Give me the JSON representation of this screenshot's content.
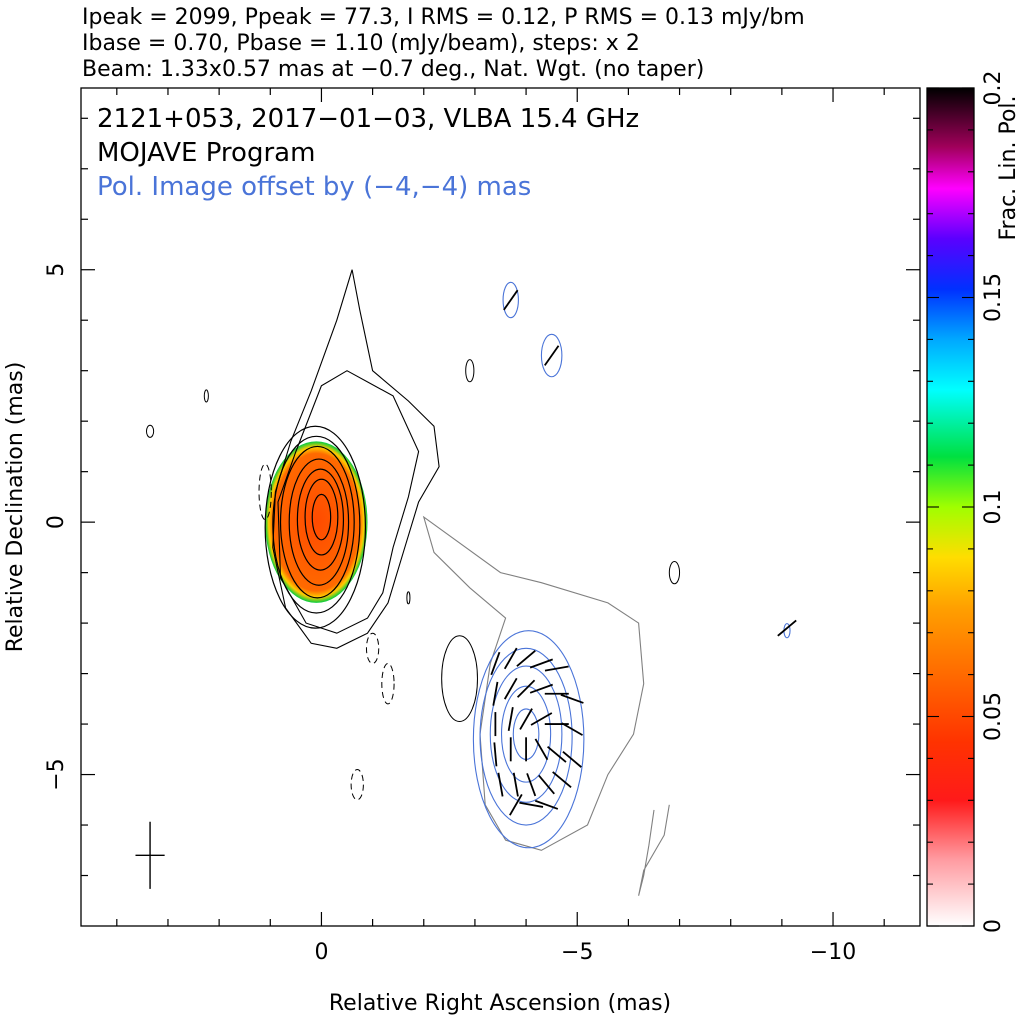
{
  "header": {
    "line1": "Ipeak = 2099, Ppeak = 77.3, I RMS = 0.12, P RMS = 0.13 mJy/bm",
    "line2": "Ibase = 0.70, Pbase = 1.10 (mJy/beam), steps: x 2",
    "line3": "Beam: 1.33x0.57 mas at −0.7 deg., Nat. Wgt. (no taper)"
  },
  "chart_data": {
    "type": "heatmap",
    "title": "2121+053, 2017−01−03, VLBA 15.4 GHz",
    "annotations": [
      "2121+053, 2017−01−03, VLBA 15.4 GHz",
      "MOJAVE Program",
      "Pol. Image offset by (−4,−4) mas"
    ],
    "xlabel": "Relative Right Ascension (mas)",
    "ylabel": "Relative Declination (mas)",
    "xlim": [
      4.7,
      -11.7
    ],
    "ylim": [
      -8.0,
      8.6
    ],
    "x_ticks": [
      0,
      -5,
      -10
    ],
    "x_tick_labels": [
      "0",
      "−5",
      "−10"
    ],
    "y_ticks": [
      5,
      0,
      -5
    ],
    "y_tick_labels": [
      "5",
      "0",
      "−5"
    ],
    "colorbar": {
      "label": "Frac. Lin. Pol.",
      "range": [
        0,
        0.2
      ],
      "ticks": [
        0,
        0.05,
        0.1,
        0.15,
        0.2
      ],
      "tick_labels": [
        "0",
        "0.05",
        "0.1",
        "0.15",
        "0.2"
      ]
    },
    "image_params": {
      "Ipeak_mJy_per_beam": 2099,
      "Ppeak_mJy_per_beam": 77.3,
      "I_RMS": 0.12,
      "P_RMS": 0.13,
      "Ibase": 0.7,
      "Pbase": 1.1,
      "contour_step_factor": 2,
      "beam_major_mas": 1.33,
      "beam_minor_mas": 0.57,
      "beam_pa_deg": -0.7
    },
    "total_intensity_contours": [
      {
        "center": [
          0.0,
          0.1
        ],
        "rx": 0.18,
        "ry": 0.45
      },
      {
        "center": [
          0.0,
          0.1
        ],
        "rx": 0.32,
        "ry": 0.75
      },
      {
        "center": [
          0.02,
          0.05
        ],
        "rx": 0.45,
        "ry": 1.0
      },
      {
        "center": [
          0.05,
          0.0
        ],
        "rx": 0.58,
        "ry": 1.25
      },
      {
        "center": [
          0.08,
          0.0
        ],
        "rx": 0.72,
        "ry": 1.5
      },
      {
        "center": [
          0.1,
          -0.05
        ],
        "rx": 0.85,
        "ry": 1.75
      },
      {
        "center": [
          0.12,
          -0.1
        ],
        "rx": 0.98,
        "ry": 2.0
      }
    ],
    "polarization_contours": [
      {
        "center": [
          -4.0,
          -4.2
        ],
        "rx": 0.25,
        "ry": 0.5
      },
      {
        "center": [
          -4.0,
          -4.2
        ],
        "rx": 0.48,
        "ry": 0.95
      },
      {
        "center": [
          -4.0,
          -4.2
        ],
        "rx": 0.7,
        "ry": 1.35
      },
      {
        "center": [
          -4.0,
          -4.25
        ],
        "rx": 0.9,
        "ry": 1.75
      },
      {
        "center": [
          -4.05,
          -4.3
        ],
        "rx": 1.08,
        "ry": 2.15
      }
    ],
    "evpa_vectors": [
      {
        "x": -3.4,
        "y": -2.8,
        "angle": 70
      },
      {
        "x": -3.7,
        "y": -2.7,
        "angle": 60
      },
      {
        "x": -4.0,
        "y": -2.7,
        "angle": 40
      },
      {
        "x": -4.3,
        "y": -2.8,
        "angle": 20
      },
      {
        "x": -4.6,
        "y": -2.9,
        "angle": 10
      },
      {
        "x": -3.4,
        "y": -3.4,
        "angle": 80
      },
      {
        "x": -3.7,
        "y": -3.3,
        "angle": 60
      },
      {
        "x": -4.0,
        "y": -3.3,
        "angle": 45
      },
      {
        "x": -4.3,
        "y": -3.3,
        "angle": 20
      },
      {
        "x": -4.6,
        "y": -3.4,
        "angle": 0
      },
      {
        "x": -4.9,
        "y": -3.5,
        "angle": -20
      },
      {
        "x": -3.4,
        "y": -4.0,
        "angle": 90
      },
      {
        "x": -3.7,
        "y": -3.9,
        "angle": 80
      },
      {
        "x": -4.0,
        "y": -3.9,
        "angle": 60
      },
      {
        "x": -4.3,
        "y": -3.9,
        "angle": 30
      },
      {
        "x": -4.6,
        "y": -4.0,
        "angle": 0
      },
      {
        "x": -4.9,
        "y": -4.1,
        "angle": -30
      },
      {
        "x": -3.4,
        "y": -4.6,
        "angle": 95
      },
      {
        "x": -3.7,
        "y": -4.5,
        "angle": 90
      },
      {
        "x": -4.0,
        "y": -4.5,
        "angle": 90
      },
      {
        "x": -4.3,
        "y": -4.5,
        "angle": -60
      },
      {
        "x": -4.6,
        "y": -4.6,
        "angle": -40
      },
      {
        "x": -4.9,
        "y": -4.7,
        "angle": -40
      },
      {
        "x": -3.5,
        "y": -5.2,
        "angle": 100
      },
      {
        "x": -3.8,
        "y": -5.2,
        "angle": 100
      },
      {
        "x": -4.1,
        "y": -5.2,
        "angle": -70
      },
      {
        "x": -4.4,
        "y": -5.2,
        "angle": -50
      },
      {
        "x": -4.7,
        "y": -5.1,
        "angle": -40
      },
      {
        "x": -3.8,
        "y": -5.6,
        "angle": 60
      },
      {
        "x": -4.1,
        "y": -5.6,
        "angle": -10
      },
      {
        "x": -4.4,
        "y": -5.6,
        "angle": -20
      },
      {
        "x": -3.7,
        "y": 4.4,
        "angle": 55
      },
      {
        "x": -4.5,
        "y": 3.3,
        "angle": 55
      },
      {
        "x": -9.1,
        "y": -2.1,
        "angle": 40
      }
    ],
    "frac_pol_core": {
      "center": [
        0.1,
        0.0
      ],
      "rx": 1.0,
      "ry": 1.6,
      "value": 0.04
    },
    "colors": {
      "intensity_contour": "#000000",
      "polarization_contour": "#4a74d8",
      "outer_contour": "#808080"
    }
  }
}
